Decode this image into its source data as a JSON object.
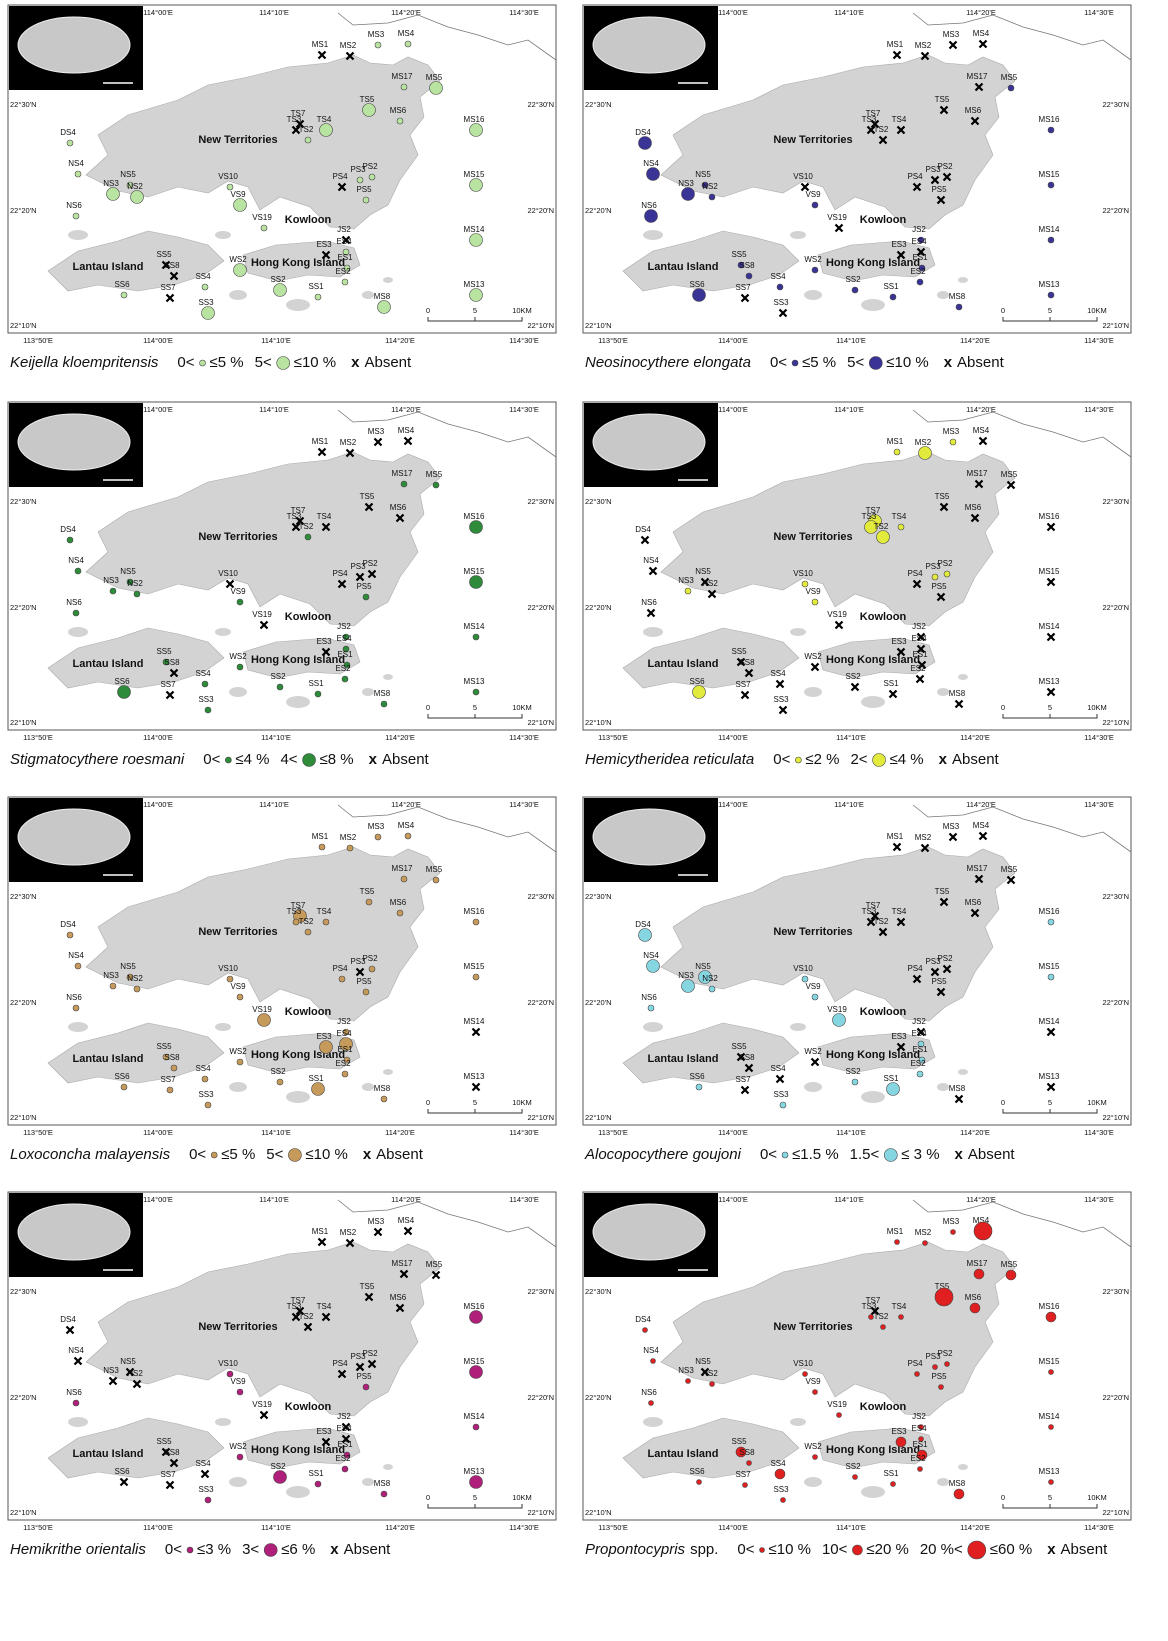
{
  "stations": [
    "MS1",
    "MS2",
    "MS3",
    "MS4",
    "MS5",
    "MS17",
    "MS6",
    "MS16",
    "MS15",
    "MS14",
    "MS13",
    "MS8",
    "TS7",
    "TS3",
    "TS4",
    "TS2",
    "TS5",
    "DS4",
    "NS4",
    "NS5",
    "NS3",
    "NS2",
    "NS6",
    "VS10",
    "VS9",
    "VS19",
    "PS4",
    "PS3",
    "PS2",
    "PS5",
    "JS2",
    "ES3",
    "ES4",
    "ES1",
    "ES2",
    "SS5",
    "SS8",
    "SS4",
    "WS2",
    "SS7",
    "SS6",
    "SS3",
    "SS2",
    "SS1"
  ],
  "places": [
    "New Territories",
    "Kowloon",
    "Hong Kong Island",
    "Lantau Island"
  ],
  "graticule": {
    "top": [
      "114°00'E",
      "114°10'E",
      "114°20'E",
      "114°30'E"
    ],
    "bottom": [
      "113°50'E",
      "114°00'E",
      "114°10'E",
      "114°20'E",
      "114°30'E"
    ],
    "left": [
      "22°30'N",
      "22°20'N",
      "22°10'N"
    ]
  },
  "scale": [
    "0",
    "5",
    "10KM"
  ],
  "absent": {
    "symbol": "x",
    "label": "Absent"
  },
  "panels": [
    {
      "species": "Keijella kloempritensis",
      "color": "#b8e3a0",
      "classes": [
        {
          "lower": "0<",
          "upper": "≤5 %"
        },
        {
          "lower": "5<",
          "upper": "≤10 %"
        }
      ],
      "markers": [
        0,
        0,
        1,
        1,
        2,
        1,
        1,
        2,
        2,
        2,
        2,
        2,
        0,
        0,
        2,
        1,
        2,
        1,
        1,
        1,
        2,
        2,
        1,
        1,
        2,
        1,
        0,
        1,
        1,
        1,
        0,
        0,
        1,
        1,
        1,
        0,
        0,
        1,
        2,
        0,
        1,
        2,
        2,
        1
      ]
    },
    {
      "species": "Neosinocythere elongata",
      "color": "#3b3497",
      "classes": [
        {
          "lower": "0<",
          "upper": "≤5 %"
        },
        {
          "lower": "5<",
          "upper": "≤10 %"
        }
      ],
      "markers": [
        0,
        0,
        0,
        0,
        1,
        0,
        0,
        1,
        1,
        1,
        1,
        1,
        0,
        0,
        0,
        0,
        0,
        2,
        2,
        1,
        2,
        1,
        2,
        0,
        1,
        0,
        0,
        0,
        0,
        0,
        1,
        0,
        0,
        1,
        1,
        1,
        1,
        1,
        1,
        0,
        2,
        0,
        1,
        1
      ]
    },
    {
      "species": "Stigmatocythere roesmani",
      "color": "#2e8b3a",
      "classes": [
        {
          "lower": "0<",
          "upper": "≤4 %"
        },
        {
          "lower": "4<",
          "upper": "≤8 %"
        }
      ],
      "markers": [
        0,
        0,
        0,
        0,
        1,
        1,
        0,
        2,
        2,
        1,
        1,
        1,
        0,
        0,
        0,
        1,
        0,
        1,
        1,
        1,
        1,
        1,
        1,
        0,
        1,
        0,
        0,
        0,
        0,
        1,
        1,
        0,
        1,
        1,
        1,
        1,
        0,
        1,
        1,
        0,
        2,
        1,
        1,
        1
      ]
    },
    {
      "species": "Hemicytheridea reticulata",
      "color": "#e2ea3c",
      "classes": [
        {
          "lower": "0<",
          "upper": "≤2 %"
        },
        {
          "lower": "2<",
          "upper": "≤4 %"
        }
      ],
      "markers": [
        1,
        2,
        1,
        0,
        0,
        0,
        0,
        0,
        0,
        0,
        0,
        0,
        2,
        2,
        1,
        2,
        0,
        0,
        0,
        0,
        1,
        0,
        0,
        1,
        1,
        0,
        0,
        1,
        1,
        0,
        0,
        0,
        0,
        0,
        0,
        0,
        0,
        0,
        0,
        0,
        2,
        0,
        0,
        0
      ]
    },
    {
      "species": "Loxoconcha malayensis",
      "color": "#c69a5a",
      "classes": [
        {
          "lower": "0<",
          "upper": "≤5 %"
        },
        {
          "lower": "5<",
          "upper": "≤10 %"
        }
      ],
      "markers": [
        1,
        1,
        1,
        1,
        1,
        1,
        1,
        1,
        1,
        0,
        0,
        1,
        2,
        1,
        1,
        1,
        1,
        1,
        1,
        1,
        1,
        1,
        1,
        1,
        1,
        2,
        1,
        0,
        1,
        1,
        1,
        2,
        2,
        1,
        1,
        1,
        1,
        1,
        1,
        1,
        1,
        1,
        1,
        2
      ]
    },
    {
      "species": "Alocopocythere goujoni",
      "color": "#86d6e2",
      "classes": [
        {
          "lower": "0<",
          "upper": "≤1.5 %"
        },
        {
          "lower": "1.5<",
          "upper": "≤ 3 %"
        }
      ],
      "markers": [
        0,
        0,
        0,
        0,
        0,
        0,
        0,
        1,
        1,
        0,
        0,
        0,
        0,
        0,
        0,
        0,
        0,
        2,
        2,
        2,
        2,
        1,
        1,
        1,
        1,
        2,
        0,
        0,
        0,
        0,
        0,
        0,
        1,
        1,
        1,
        0,
        0,
        0,
        0,
        0,
        1,
        1,
        1,
        2
      ]
    },
    {
      "species": "Hemikrithe orientalis",
      "color": "#b0207a",
      "classes": [
        {
          "lower": "0<",
          "upper": "≤3 %"
        },
        {
          "lower": "3<",
          "upper": "≤6 %"
        }
      ],
      "markers": [
        0,
        0,
        0,
        0,
        0,
        0,
        0,
        2,
        2,
        1,
        2,
        1,
        0,
        0,
        0,
        0,
        0,
        0,
        0,
        0,
        0,
        0,
        1,
        1,
        1,
        0,
        0,
        0,
        0,
        1,
        0,
        0,
        0,
        1,
        1,
        0,
        0,
        0,
        1,
        0,
        0,
        1,
        2,
        1
      ]
    },
    {
      "species": "Propontocypris",
      "suffix": "spp.",
      "color": "#e02020",
      "classes": [
        {
          "lower": "0<",
          "upper": "≤10 %"
        },
        {
          "lower": "10<",
          "upper": "≤20 %"
        },
        {
          "lower": "20 %<",
          "upper": "≤60 %"
        }
      ],
      "markers": [
        1,
        1,
        1,
        3,
        2,
        2,
        2,
        2,
        1,
        1,
        1,
        2,
        0,
        1,
        1,
        1,
        3,
        1,
        1,
        0,
        1,
        1,
        1,
        1,
        1,
        1,
        1,
        1,
        1,
        1,
        1,
        2,
        1,
        2,
        1,
        2,
        1,
        2,
        1,
        1,
        1,
        1,
        1,
        1
      ]
    }
  ]
}
